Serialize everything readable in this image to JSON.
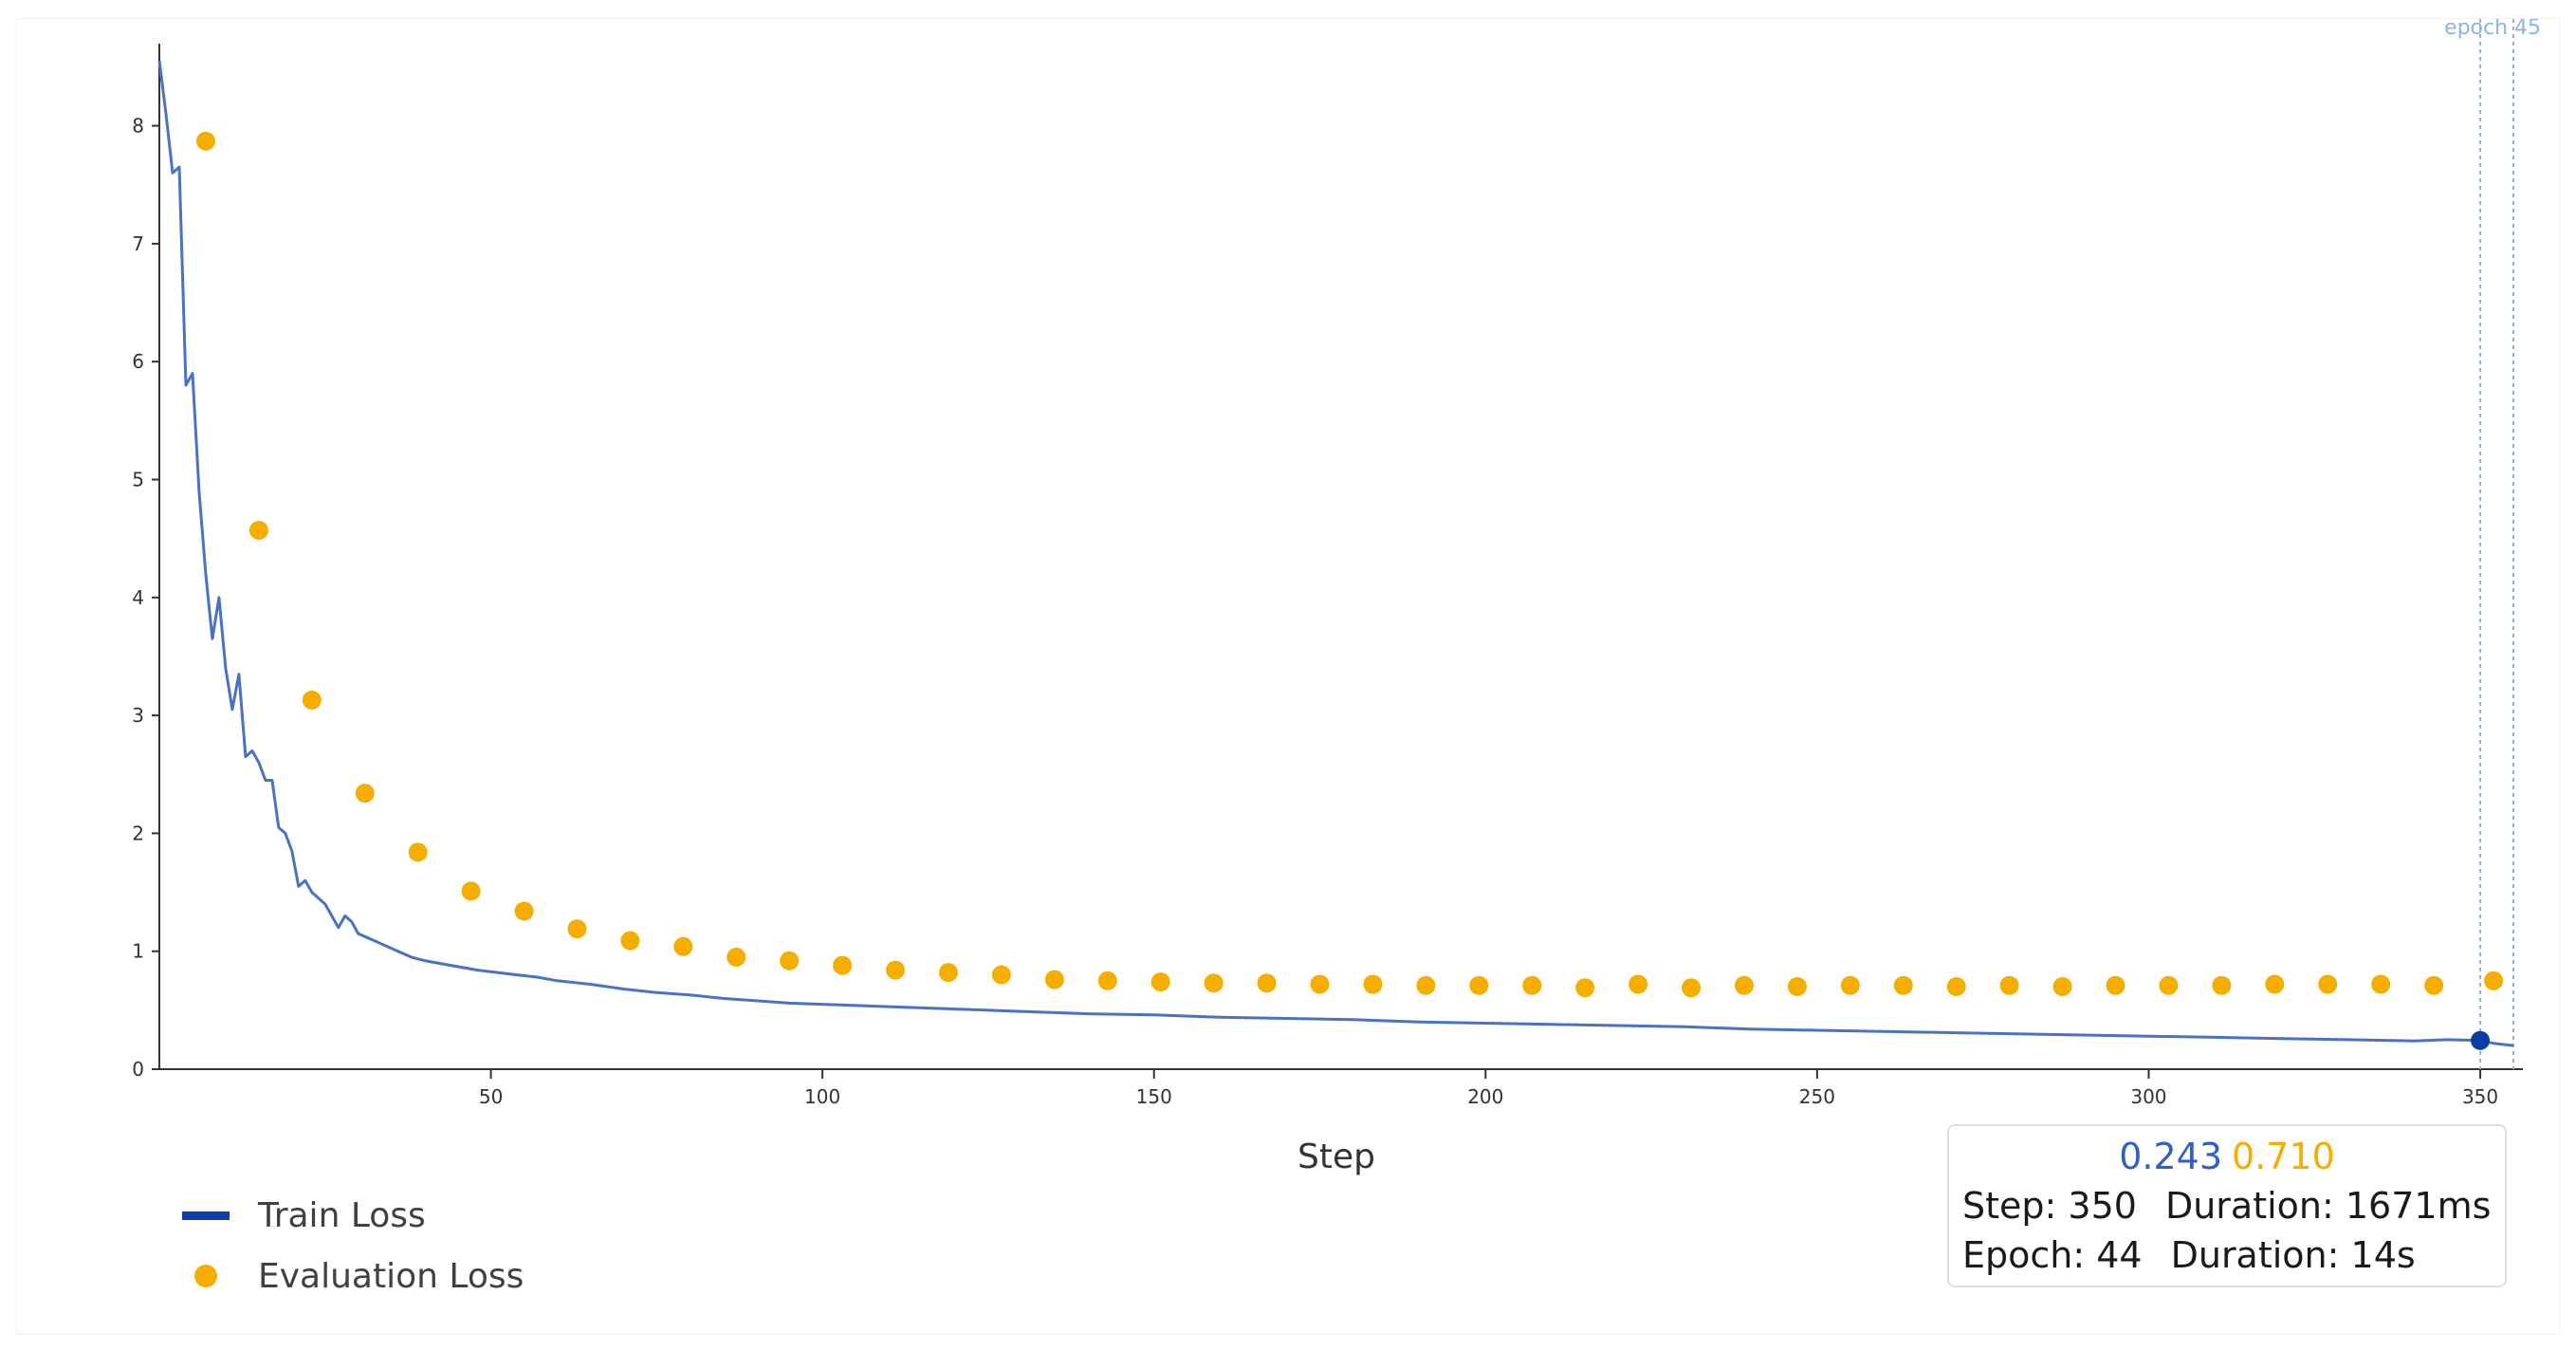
{
  "chart_data": {
    "type": "line",
    "xlabel": "Step",
    "ylabel": "",
    "xlim": [
      0,
      355
    ],
    "ylim": [
      0,
      8.6
    ],
    "x_ticks": [
      50,
      100,
      150,
      200,
      250,
      300,
      350
    ],
    "y_ticks": [
      0,
      1,
      2,
      3,
      4,
      5,
      6,
      7,
      8
    ],
    "grid": false,
    "legend_position": "bottom-left",
    "epoch_marker": {
      "label": "epoch 45"
    },
    "series": [
      {
        "name": "Train Loss",
        "kind": "line",
        "color": "#4a72c4",
        "x": [
          0,
          1,
          2,
          3,
          4,
          5,
          6,
          7,
          8,
          9,
          10,
          11,
          12,
          13,
          14,
          15,
          16,
          17,
          18,
          19,
          20,
          21,
          22,
          23,
          24,
          25,
          26,
          27,
          28,
          29,
          30,
          32,
          34,
          36,
          38,
          40,
          42,
          45,
          48,
          51,
          54,
          57,
          60,
          65,
          70,
          75,
          80,
          85,
          90,
          95,
          100,
          110,
          120,
          130,
          140,
          150,
          160,
          170,
          180,
          190,
          200,
          210,
          220,
          230,
          240,
          250,
          260,
          270,
          280,
          290,
          300,
          310,
          320,
          330,
          340,
          345,
          350,
          352,
          355
        ],
        "values": [
          8.55,
          8.1,
          7.6,
          7.65,
          5.8,
          5.9,
          4.9,
          4.2,
          3.65,
          4.0,
          3.4,
          3.05,
          3.35,
          2.65,
          2.7,
          2.6,
          2.45,
          2.45,
          2.05,
          2.0,
          1.85,
          1.55,
          1.6,
          1.5,
          1.45,
          1.4,
          1.3,
          1.2,
          1.3,
          1.25,
          1.15,
          1.1,
          1.05,
          1.0,
          0.95,
          0.92,
          0.9,
          0.87,
          0.84,
          0.82,
          0.8,
          0.78,
          0.75,
          0.72,
          0.68,
          0.65,
          0.63,
          0.6,
          0.58,
          0.56,
          0.55,
          0.53,
          0.51,
          0.49,
          0.47,
          0.46,
          0.44,
          0.43,
          0.42,
          0.4,
          0.39,
          0.38,
          0.37,
          0.36,
          0.34,
          0.33,
          0.32,
          0.31,
          0.3,
          0.29,
          0.28,
          0.27,
          0.26,
          0.25,
          0.24,
          0.25,
          0.243,
          0.22,
          0.2
        ]
      },
      {
        "name": "Evaluation Loss",
        "kind": "scatter",
        "color": "#f5ae00",
        "x": [
          7,
          15,
          23,
          31,
          39,
          47,
          55,
          63,
          71,
          79,
          87,
          95,
          103,
          111,
          119,
          127,
          135,
          143,
          151,
          159,
          167,
          175,
          183,
          191,
          199,
          207,
          215,
          223,
          231,
          239,
          247,
          255,
          263,
          271,
          279,
          287,
          295,
          303,
          311,
          319,
          327,
          335,
          343,
          352
        ],
        "values": [
          7.87,
          4.57,
          3.13,
          2.34,
          1.84,
          1.51,
          1.34,
          1.19,
          1.09,
          1.04,
          0.95,
          0.92,
          0.88,
          0.84,
          0.82,
          0.8,
          0.76,
          0.75,
          0.74,
          0.73,
          0.73,
          0.72,
          0.72,
          0.71,
          0.71,
          0.71,
          0.69,
          0.72,
          0.69,
          0.71,
          0.7,
          0.71,
          0.71,
          0.7,
          0.71,
          0.7,
          0.71,
          0.71,
          0.71,
          0.72,
          0.72,
          0.72,
          0.71,
          0.75
        ]
      }
    ],
    "hover": {
      "x": 350,
      "train_value": 0.243
    }
  },
  "legend": {
    "train": {
      "label": "Train Loss",
      "color": "#0c3ea8"
    },
    "eval": {
      "label": "Evaluation Loss",
      "color": "#f5ae00"
    }
  },
  "tooltip": {
    "train_value": "0.243",
    "eval_value": "0.710",
    "step_text": "Step: 350",
    "step_duration_text": "Duration: 1671ms",
    "epoch_text": "Epoch: 44",
    "epoch_duration_text": "Duration: 14s"
  }
}
